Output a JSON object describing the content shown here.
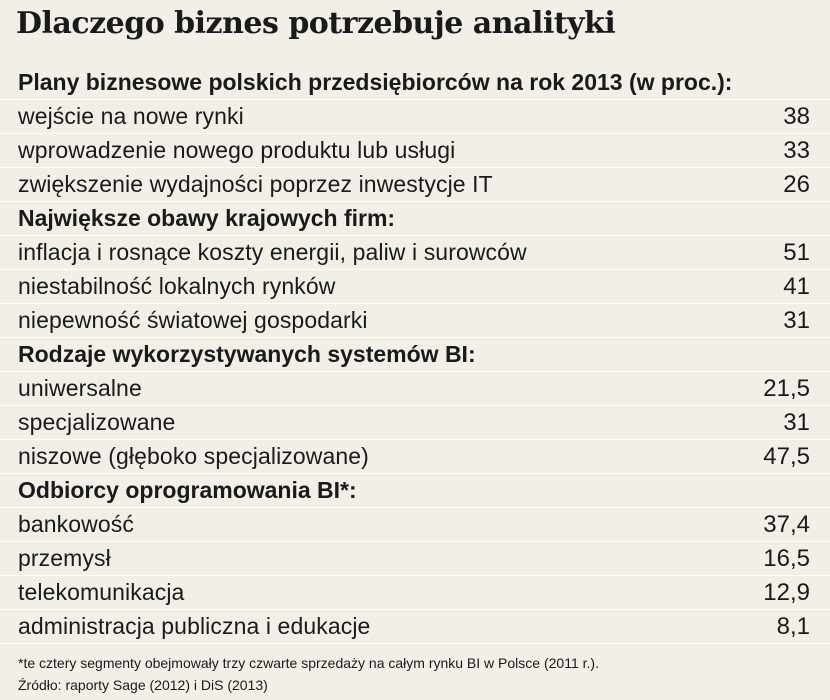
{
  "title": "Dlaczego biznes potrzebuje analityki",
  "chart_data": {
    "type": "table",
    "title": "Dlaczego biznes potrzebuje analityki",
    "sections": [
      {
        "header": "Plany biznesowe polskich przedsiębiorców na rok 2013 (w proc.):",
        "rows": [
          {
            "label": "wejście na nowe rynki",
            "value": "38"
          },
          {
            "label": "wprowadzenie nowego produktu lub usługi",
            "value": "33"
          },
          {
            "label": "zwiększenie wydajności poprzez inwestycje IT",
            "value": "26"
          }
        ]
      },
      {
        "header": "Największe obawy krajowych firm:",
        "rows": [
          {
            "label": "inflacja i rosnące koszty energii, paliw i surowców",
            "value": "51"
          },
          {
            "label": "niestabilność lokalnych rynków",
            "value": "41"
          },
          {
            "label": "niepewność światowej gospodarki",
            "value": "31"
          }
        ]
      },
      {
        "header": "Rodzaje wykorzystywanych systemów BI:",
        "rows": [
          {
            "label": "uniwersalne",
            "value": "21,5"
          },
          {
            "label": "specjalizowane",
            "value": "31"
          },
          {
            "label": "niszowe (głęboko specjalizowane)",
            "value": "47,5"
          }
        ]
      },
      {
        "header": "Odbiorcy oprogramowania BI*:",
        "rows": [
          {
            "label": "bankowość",
            "value": "37,4"
          },
          {
            "label": "przemysł",
            "value": "16,5"
          },
          {
            "label": "telekomunikacja",
            "value": "12,9"
          },
          {
            "label": "administracja publiczna i edukacje",
            "value": "8,1"
          }
        ]
      }
    ]
  },
  "footnotes": {
    "note": "*te cztery segmenty obejmowały trzy czwarte sprzedaży na całym rynku BI w Polsce (2011 r.).",
    "source": "Źródło: raporty Sage (2012) i DiS (2013)"
  }
}
